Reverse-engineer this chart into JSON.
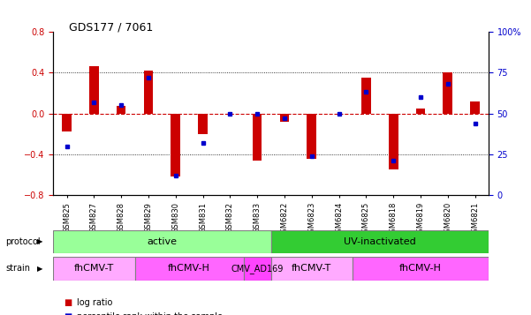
{
  "title": "GDS177 / 7061",
  "samples": [
    "GSM825",
    "GSM827",
    "GSM828",
    "GSM829",
    "GSM830",
    "GSM831",
    "GSM832",
    "GSM833",
    "GSM6822",
    "GSM6823",
    "GSM6824",
    "GSM6825",
    "GSM6818",
    "GSM6819",
    "GSM6820",
    "GSM6821"
  ],
  "log_ratio": [
    -0.18,
    0.46,
    0.07,
    0.42,
    -0.62,
    -0.2,
    0.0,
    -0.46,
    -0.08,
    -0.44,
    0.0,
    0.35,
    -0.55,
    0.05,
    0.4,
    0.12
  ],
  "percentile": [
    30,
    57,
    55,
    72,
    12,
    32,
    50,
    50,
    47,
    24,
    50,
    63,
    21,
    60,
    68,
    44
  ],
  "ylim_left": [
    -0.8,
    0.8
  ],
  "ylim_right": [
    0,
    100
  ],
  "yticks_left": [
    -0.8,
    -0.4,
    0.0,
    0.4,
    0.8
  ],
  "yticks_right": [
    0,
    25,
    50,
    75,
    100
  ],
  "bar_color": "#cc0000",
  "dot_color": "#0000cc",
  "zero_line_color": "#cc0000",
  "grid_color": "#000000",
  "protocol_active_color": "#99ff99",
  "protocol_uv_color": "#33cc33",
  "strain_fhcmvt_color": "#ffaaff",
  "strain_fhcmvh_color": "#ff66ff",
  "strain_cmvad169_color": "#ff44ff",
  "protocols": [
    {
      "label": "active",
      "start": 0,
      "end": 8
    },
    {
      "label": "UV-inactivated",
      "start": 8,
      "end": 16
    }
  ],
  "strains": [
    {
      "label": "fhCMV-T",
      "start": 0,
      "end": 3
    },
    {
      "label": "fhCMV-H",
      "start": 3,
      "end": 7
    },
    {
      "label": "CMV_AD169",
      "start": 7,
      "end": 8
    },
    {
      "label": "fhCMV-T",
      "start": 8,
      "end": 11
    },
    {
      "label": "fhCMV-H",
      "start": 11,
      "end": 16
    }
  ],
  "legend_log_ratio_color": "#cc0000",
  "legend_percentile_color": "#0000cc",
  "background_color": "#ffffff"
}
